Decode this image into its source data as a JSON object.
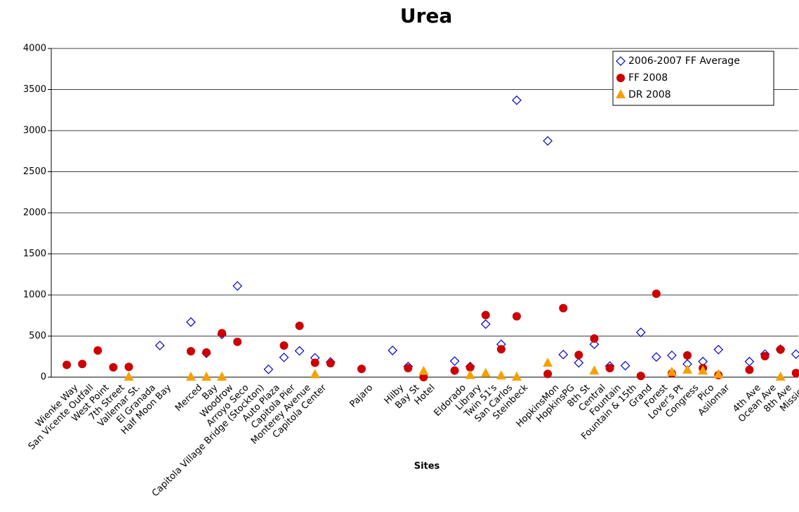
{
  "chart_data": {
    "type": "scatter",
    "title": "Urea",
    "x_label": "Sites",
    "categories": [
      "Wienke Way",
      "San Vicente Outfall",
      "West Point",
      "7th Street",
      "Vallemar St.",
      "El Granada",
      "Half Moon Bay",
      null,
      "Merced",
      "Bay",
      "Woodrow",
      "Arroyo Seco",
      "Capitola Village Bridge (Stockton)",
      "Auto Plaza",
      "Capitola Pier",
      "Monterey Avenue",
      "Capitola Center",
      null,
      null,
      "Pajaro",
      null,
      "Hilby",
      "Bay St",
      "Hotel",
      null,
      "Eldorado",
      "Library",
      "Twin 51's",
      "San Carlos",
      "Steinbeck",
      null,
      "HopkinsMon",
      "HopkinsPG",
      "8th St",
      "Central",
      "Fountain",
      "Fountain & 15th",
      "Grand",
      "Forest",
      "Lover's Pt",
      "Congress",
      "Pico",
      "Asilomar",
      null,
      "4th Ave",
      "Ocean Ave",
      "8th Ave",
      "Mission"
    ],
    "series": [
      {
        "name": "2006-2007 FF Average",
        "color": "#0000cc",
        "marker": "diamond",
        "values": [
          null,
          null,
          null,
          null,
          null,
          null,
          385,
          null,
          670,
          290,
          520,
          1110,
          null,
          95,
          240,
          320,
          235,
          185,
          null,
          null,
          null,
          325,
          130,
          null,
          null,
          195,
          130,
          645,
          400,
          3370,
          null,
          2875,
          275,
          175,
          400,
          135,
          140,
          545,
          245,
          265,
          160,
          190,
          335,
          null,
          190,
          280,
          340,
          280
        ]
      },
      {
        "name": "FF 2008",
        "color": "#cc0000",
        "marker": "circle",
        "values": [
          150,
          160,
          325,
          120,
          125,
          null,
          null,
          null,
          315,
          300,
          535,
          430,
          null,
          null,
          385,
          625,
          175,
          170,
          null,
          100,
          null,
          null,
          110,
          0,
          null,
          80,
          120,
          755,
          340,
          740,
          null,
          40,
          840,
          270,
          470,
          110,
          null,
          15,
          1015,
          45,
          265,
          110,
          25,
          null,
          90,
          255,
          335,
          50
        ]
      },
      {
        "name": "DR 2008",
        "color": "#f5a000",
        "marker": "triangle",
        "values": [
          null,
          null,
          null,
          null,
          0,
          null,
          null,
          null,
          0,
          0,
          0,
          null,
          null,
          null,
          null,
          null,
          30,
          null,
          null,
          null,
          null,
          null,
          null,
          70,
          null,
          null,
          20,
          45,
          15,
          0,
          null,
          170,
          null,
          null,
          75,
          null,
          null,
          null,
          null,
          60,
          85,
          75,
          30,
          null,
          null,
          null,
          0,
          null
        ]
      }
    ],
    "ylim": [
      0,
      4000
    ],
    "yticks": [
      0,
      500,
      1000,
      1500,
      2000,
      2500,
      3000,
      3500,
      4000
    ],
    "grid": true,
    "legend": "upper right"
  }
}
